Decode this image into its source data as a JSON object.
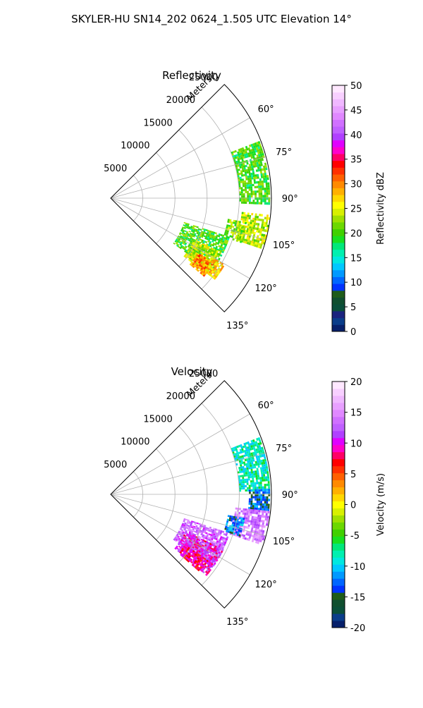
{
  "title": "SKYLER-HU  SN14_202  0624_1.505 UTC Elevation 14°",
  "chart_data": [
    {
      "type": "heatmap",
      "title": "Reflectivity",
      "range_axis_label": "Meters",
      "range_ticks": [
        5000,
        10000,
        15000,
        20000,
        25000
      ],
      "range_max": 25000,
      "azimuth_ticks": [
        "60°",
        "75°",
        "90°",
        "105°",
        "120°",
        "135°"
      ],
      "azimuth_range_deg": [
        45,
        135
      ],
      "grid": true,
      "colorbar": {
        "label": "Reflectivity dBZ",
        "ticks": [
          0,
          5,
          10,
          15,
          20,
          25,
          30,
          35,
          40,
          45,
          50
        ],
        "range": [
          0,
          50
        ],
        "colors": [
          "#07206b",
          "#0a3d8a",
          "#1a237e",
          "#0a4f3a",
          "#104f2f",
          "#1f5c1a",
          "#0033ff",
          "#0066ff",
          "#0099ff",
          "#00c8ff",
          "#00e8e0",
          "#00f0b0",
          "#00e87a",
          "#18e020",
          "#40d000",
          "#6cd800",
          "#a0e000",
          "#d8f000",
          "#ffff00",
          "#ffd800",
          "#ffb000",
          "#ff8a00",
          "#ff6000",
          "#ff3000",
          "#ff0000",
          "#ff0066",
          "#ff00cc",
          "#e000ff",
          "#b040ff",
          "#c060ff",
          "#d070ff",
          "#e088ff",
          "#e8a0ff",
          "#f0b8ff",
          "#f8d0ff",
          "#ffe8ff"
        ]
      },
      "echo_regions": [
        {
          "az": [
            69,
            92
          ],
          "r": [
            20000,
            24800
          ],
          "level": 20
        },
        {
          "az": [
            96,
            108
          ],
          "r": [
            20500,
            24800
          ],
          "level": 24
        },
        {
          "az": [
            100,
            109
          ],
          "r": [
            18500,
            21500
          ],
          "level": 22
        },
        {
          "az": [
            108,
            126
          ],
          "r": [
            12000,
            19500
          ],
          "level": 20
        },
        {
          "az": [
            116,
            128
          ],
          "r": [
            14500,
            18500
          ],
          "level": 24
        },
        {
          "az": [
            122,
            130
          ],
          "r": [
            16000,
            19000
          ],
          "level": 30
        },
        {
          "az": [
            120,
            128
          ],
          "r": [
            18500,
            20500
          ],
          "level": 27
        }
      ]
    },
    {
      "type": "heatmap",
      "title": "Velocity",
      "range_axis_label": "Meters",
      "range_ticks": [
        5000,
        10000,
        15000,
        20000,
        25000
      ],
      "range_max": 25000,
      "azimuth_ticks": [
        "60°",
        "75°",
        "90°",
        "105°",
        "120°",
        "135°"
      ],
      "azimuth_range_deg": [
        45,
        135
      ],
      "grid": true,
      "colorbar": {
        "label": "Velocity (m/s)",
        "ticks": [
          -20,
          -15,
          -10,
          -5,
          0,
          5,
          10,
          15,
          20
        ],
        "range": [
          -20,
          20
        ],
        "colors": [
          "#07206b",
          "#0a3d8a",
          "#0a4f3a",
          "#104f2f",
          "#1f5c1a",
          "#0033ff",
          "#0066ff",
          "#0099ff",
          "#00c8ff",
          "#00e8e0",
          "#00f0b0",
          "#00e87a",
          "#18e020",
          "#40d000",
          "#6cd800",
          "#a0e000",
          "#d8f000",
          "#ffff00",
          "#ffd800",
          "#ffb000",
          "#ff8a00",
          "#ff6000",
          "#ff3000",
          "#ff0000",
          "#ff0066",
          "#ff00cc",
          "#e000ff",
          "#b040ff",
          "#c060ff",
          "#d070ff",
          "#e088ff",
          "#e8a0ff",
          "#f0b8ff",
          "#f8d0ff",
          "#ffe8ff"
        ]
      },
      "echo_regions": [
        {
          "az": [
            69,
            88
          ],
          "r": [
            20000,
            24800
          ],
          "level": -8
        },
        {
          "az": [
            88,
            96
          ],
          "r": [
            21500,
            24800
          ],
          "level": -13
        },
        {
          "az": [
            96,
            108
          ],
          "r": [
            19500,
            24800
          ],
          "level": 14
        },
        {
          "az": [
            100,
            108
          ],
          "r": [
            18500,
            21000
          ],
          "level": -12
        },
        {
          "az": [
            108,
            126
          ],
          "r": [
            12000,
            19500
          ],
          "level": 13
        },
        {
          "az": [
            116,
            130
          ],
          "r": [
            13000,
            19500
          ],
          "level": 10
        },
        {
          "az": [
            124,
            131
          ],
          "r": [
            14000,
            18000
          ],
          "level": 8
        }
      ]
    }
  ]
}
